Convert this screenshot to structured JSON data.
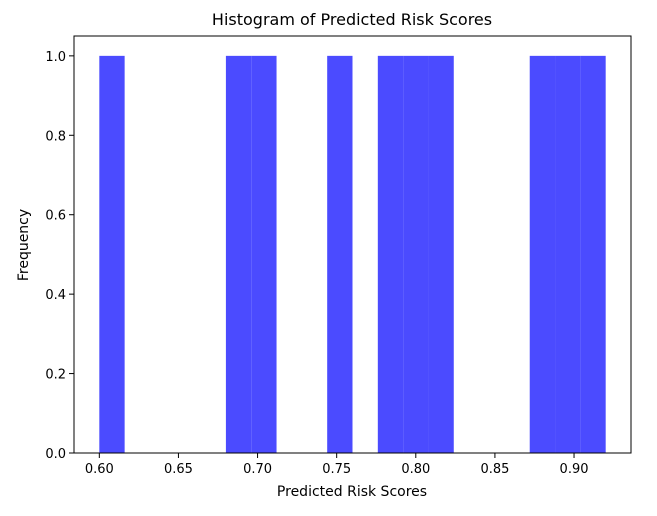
{
  "chart_data": {
    "type": "bar",
    "title": "Histogram of Predicted Risk Scores",
    "xlabel": "Predicted Risk Scores",
    "ylabel": "Frequency",
    "bar_color": "#4b4bff",
    "xlim": [
      0.584,
      0.936
    ],
    "ylim": [
      0,
      1.05
    ],
    "x_ticks": [
      {
        "value": 0.6,
        "label": "0.60"
      },
      {
        "value": 0.65,
        "label": "0.65"
      },
      {
        "value": 0.7,
        "label": "0.70"
      },
      {
        "value": 0.75,
        "label": "0.75"
      },
      {
        "value": 0.8,
        "label": "0.80"
      },
      {
        "value": 0.85,
        "label": "0.85"
      },
      {
        "value": 0.9,
        "label": "0.90"
      }
    ],
    "y_ticks": [
      {
        "value": 0.0,
        "label": "0.0"
      },
      {
        "value": 0.2,
        "label": "0.2"
      },
      {
        "value": 0.4,
        "label": "0.4"
      },
      {
        "value": 0.6,
        "label": "0.6"
      },
      {
        "value": 0.8,
        "label": "0.8"
      },
      {
        "value": 1.0,
        "label": "1.0"
      }
    ],
    "bins": [
      {
        "start": 0.6,
        "end": 0.616,
        "count": 1
      },
      {
        "start": 0.616,
        "end": 0.632,
        "count": 0
      },
      {
        "start": 0.632,
        "end": 0.648,
        "count": 0
      },
      {
        "start": 0.648,
        "end": 0.664,
        "count": 0
      },
      {
        "start": 0.664,
        "end": 0.68,
        "count": 0
      },
      {
        "start": 0.68,
        "end": 0.696,
        "count": 1
      },
      {
        "start": 0.696,
        "end": 0.712,
        "count": 1
      },
      {
        "start": 0.712,
        "end": 0.728,
        "count": 0
      },
      {
        "start": 0.728,
        "end": 0.744,
        "count": 0
      },
      {
        "start": 0.744,
        "end": 0.76,
        "count": 1
      },
      {
        "start": 0.76,
        "end": 0.776,
        "count": 0
      },
      {
        "start": 0.776,
        "end": 0.792,
        "count": 1
      },
      {
        "start": 0.792,
        "end": 0.808,
        "count": 1
      },
      {
        "start": 0.808,
        "end": 0.824,
        "count": 1
      },
      {
        "start": 0.824,
        "end": 0.84,
        "count": 0
      },
      {
        "start": 0.84,
        "end": 0.856,
        "count": 0
      },
      {
        "start": 0.856,
        "end": 0.872,
        "count": 0
      },
      {
        "start": 0.872,
        "end": 0.888,
        "count": 1
      },
      {
        "start": 0.888,
        "end": 0.904,
        "count": 1
      },
      {
        "start": 0.904,
        "end": 0.92,
        "count": 1
      }
    ]
  }
}
